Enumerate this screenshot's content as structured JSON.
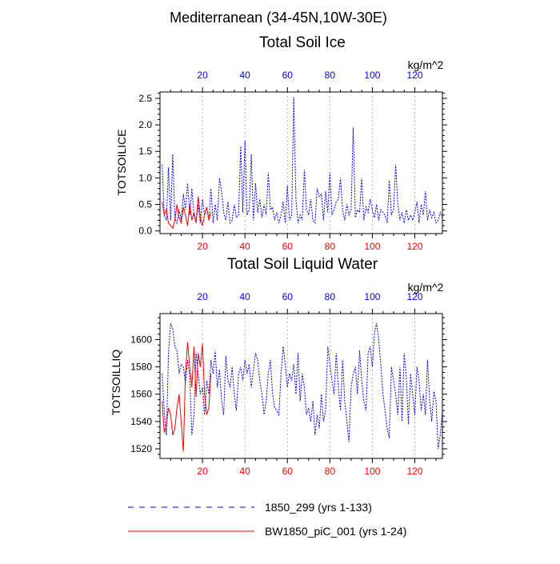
{
  "figure": {
    "title": "Mediterranean (34-45N,10W-30E)"
  },
  "chart_data": [
    {
      "type": "line",
      "title": "Total Soil Ice",
      "ylabel": "TOTSOILICE",
      "units": "kg/m^2",
      "xlim": [
        0,
        133
      ],
      "ylim": [
        -0.05,
        2.62
      ],
      "yticks": [
        0.0,
        0.5,
        1.0,
        1.5,
        2.0,
        2.5
      ],
      "ytick_labels": [
        "0.0",
        "0.5",
        "1.0",
        "1.5",
        "2.0",
        "2.5"
      ],
      "xticks": [
        20,
        40,
        60,
        80,
        100,
        120
      ],
      "xtick_labels": [
        "20",
        "40",
        "60",
        "80",
        "100",
        "120"
      ],
      "series": [
        {
          "name": "1850_299 (yrs 1-133)",
          "color": "#0000ff",
          "dash": "dotted",
          "x_start": 1,
          "values": [
            1.25,
            0.3,
            0.2,
            1.2,
            0.2,
            1.45,
            0.25,
            0.15,
            0.4,
            0.2,
            0.7,
            0.4,
            0.9,
            0.3,
            0.8,
            0.3,
            0.15,
            0.5,
            0.15,
            0.6,
            0.3,
            0.45,
            0.2,
            0.8,
            0.15,
            0.5,
            0.2,
            1.0,
            0.75,
            0.35,
            0.2,
            0.55,
            0.15,
            0.2,
            0.5,
            0.25,
            0.3,
            1.6,
            0.35,
            1.7,
            0.3,
            0.4,
            1.45,
            0.2,
            0.9,
            0.35,
            0.6,
            0.25,
            0.5,
            0.3,
            1.1,
            0.4,
            0.45,
            0.2,
            0.35,
            0.15,
            0.3,
            0.55,
            0.15,
            0.85,
            0.2,
            0.3,
            2.52,
            0.6,
            0.15,
            0.3,
            0.2,
            1.15,
            0.4,
            0.3,
            0.6,
            0.2,
            0.15,
            0.8,
            0.65,
            0.7,
            0.2,
            0.75,
            0.35,
            1.1,
            0.3,
            0.4,
            0.55,
            0.6,
            1.0,
            0.4,
            0.2,
            0.5,
            0.3,
            0.4,
            1.95,
            0.25,
            0.4,
            0.35,
            1.0,
            0.2,
            0.45,
            0.35,
            0.6,
            0.4,
            0.25,
            0.5,
            0.2,
            0.4,
            0.35,
            0.3,
            0.15,
            0.95,
            0.3,
            0.4,
            1.25,
            0.5,
            0.2,
            0.35,
            0.15,
            0.4,
            0.2,
            0.3,
            0.2,
            0.35,
            0.55,
            0.15,
            0.5,
            0.3,
            0.75,
            0.2,
            0.4,
            0.25,
            0.35,
            0.15,
            0.2,
            0.35,
            0.25
          ]
        },
        {
          "name": "BW1850_piC_001 (yrs 1-24)",
          "color": "#ff0000",
          "dash": "solid",
          "x_start": 1,
          "values": [
            0.55,
            0.3,
            0.4,
            0.15,
            0.1,
            0.05,
            0.2,
            0.5,
            0.25,
            0.15,
            0.45,
            0.3,
            0.1,
            0.5,
            0.2,
            0.35,
            0.15,
            0.65,
            0.25,
            0.1,
            0.3,
            0.45,
            0.2,
            0.35
          ]
        }
      ]
    },
    {
      "type": "line",
      "title": "Total Soil Liquid Water",
      "ylabel": "TOTSOILLIQ",
      "units": "kg/m^2",
      "xlim": [
        0,
        133
      ],
      "ylim": [
        1513,
        1619
      ],
      "yticks": [
        1520,
        1540,
        1560,
        1580,
        1600
      ],
      "ytick_labels": [
        "1520",
        "1540",
        "1560",
        "1580",
        "1600"
      ],
      "xticks": [
        20,
        40,
        60,
        80,
        100,
        120
      ],
      "xtick_labels": [
        "20",
        "40",
        "60",
        "80",
        "100",
        "120"
      ],
      "series": [
        {
          "name": "1850_299 (yrs 1-133)",
          "color": "#0000ff",
          "dash": "dotted",
          "x_start": 1,
          "values": [
            1575,
            1548,
            1530,
            1590,
            1612,
            1608,
            1595,
            1592,
            1575,
            1582,
            1580,
            1568,
            1585,
            1572,
            1530,
            1545,
            1590,
            1575,
            1560,
            1565,
            1545,
            1570,
            1560,
            1585,
            1575,
            1592,
            1565,
            1578,
            1555,
            1545,
            1588,
            1570,
            1565,
            1580,
            1560,
            1548,
            1575,
            1580,
            1570,
            1585,
            1575,
            1582,
            1565,
            1578,
            1590,
            1585,
            1570,
            1560,
            1545,
            1555,
            1575,
            1585,
            1560,
            1550,
            1548,
            1545,
            1575,
            1595,
            1582,
            1565,
            1575,
            1570,
            1582,
            1560,
            1590,
            1555,
            1575,
            1565,
            1545,
            1550,
            1540,
            1555,
            1530,
            1545,
            1535,
            1560,
            1540,
            1548,
            1595,
            1582,
            1570,
            1560,
            1590,
            1565,
            1548,
            1585,
            1555,
            1540,
            1525,
            1565,
            1575,
            1580,
            1560,
            1592,
            1570,
            1555,
            1548,
            1590,
            1595,
            1580,
            1605,
            1612,
            1600,
            1582,
            1560,
            1548,
            1535,
            1528,
            1580,
            1570,
            1560,
            1545,
            1580,
            1540,
            1590,
            1572,
            1538,
            1575,
            1560,
            1545,
            1580,
            1570,
            1548,
            1560,
            1545,
            1585,
            1555,
            1540,
            1562,
            1555,
            1520,
            1530,
            1548
          ]
        },
        {
          "name": "BW1850_piC_001 (yrs 1-24)",
          "color": "#ff0000",
          "dash": "solid",
          "x_start": 1,
          "values": [
            1555,
            1532,
            1538,
            1550,
            1545,
            1530,
            1535,
            1550,
            1560,
            1540,
            1518,
            1575,
            1598,
            1580,
            1565,
            1595,
            1558,
            1590,
            1580,
            1597,
            1560,
            1545,
            1550,
            1575
          ]
        }
      ]
    }
  ],
  "legend": [
    {
      "label": "1850_299 (yrs 1-133)",
      "color": "#0000ff",
      "style": "dashed"
    },
    {
      "label": "BW1850_piC_001 (yrs 1-24)",
      "color": "#ff0000",
      "style": "solid"
    }
  ]
}
